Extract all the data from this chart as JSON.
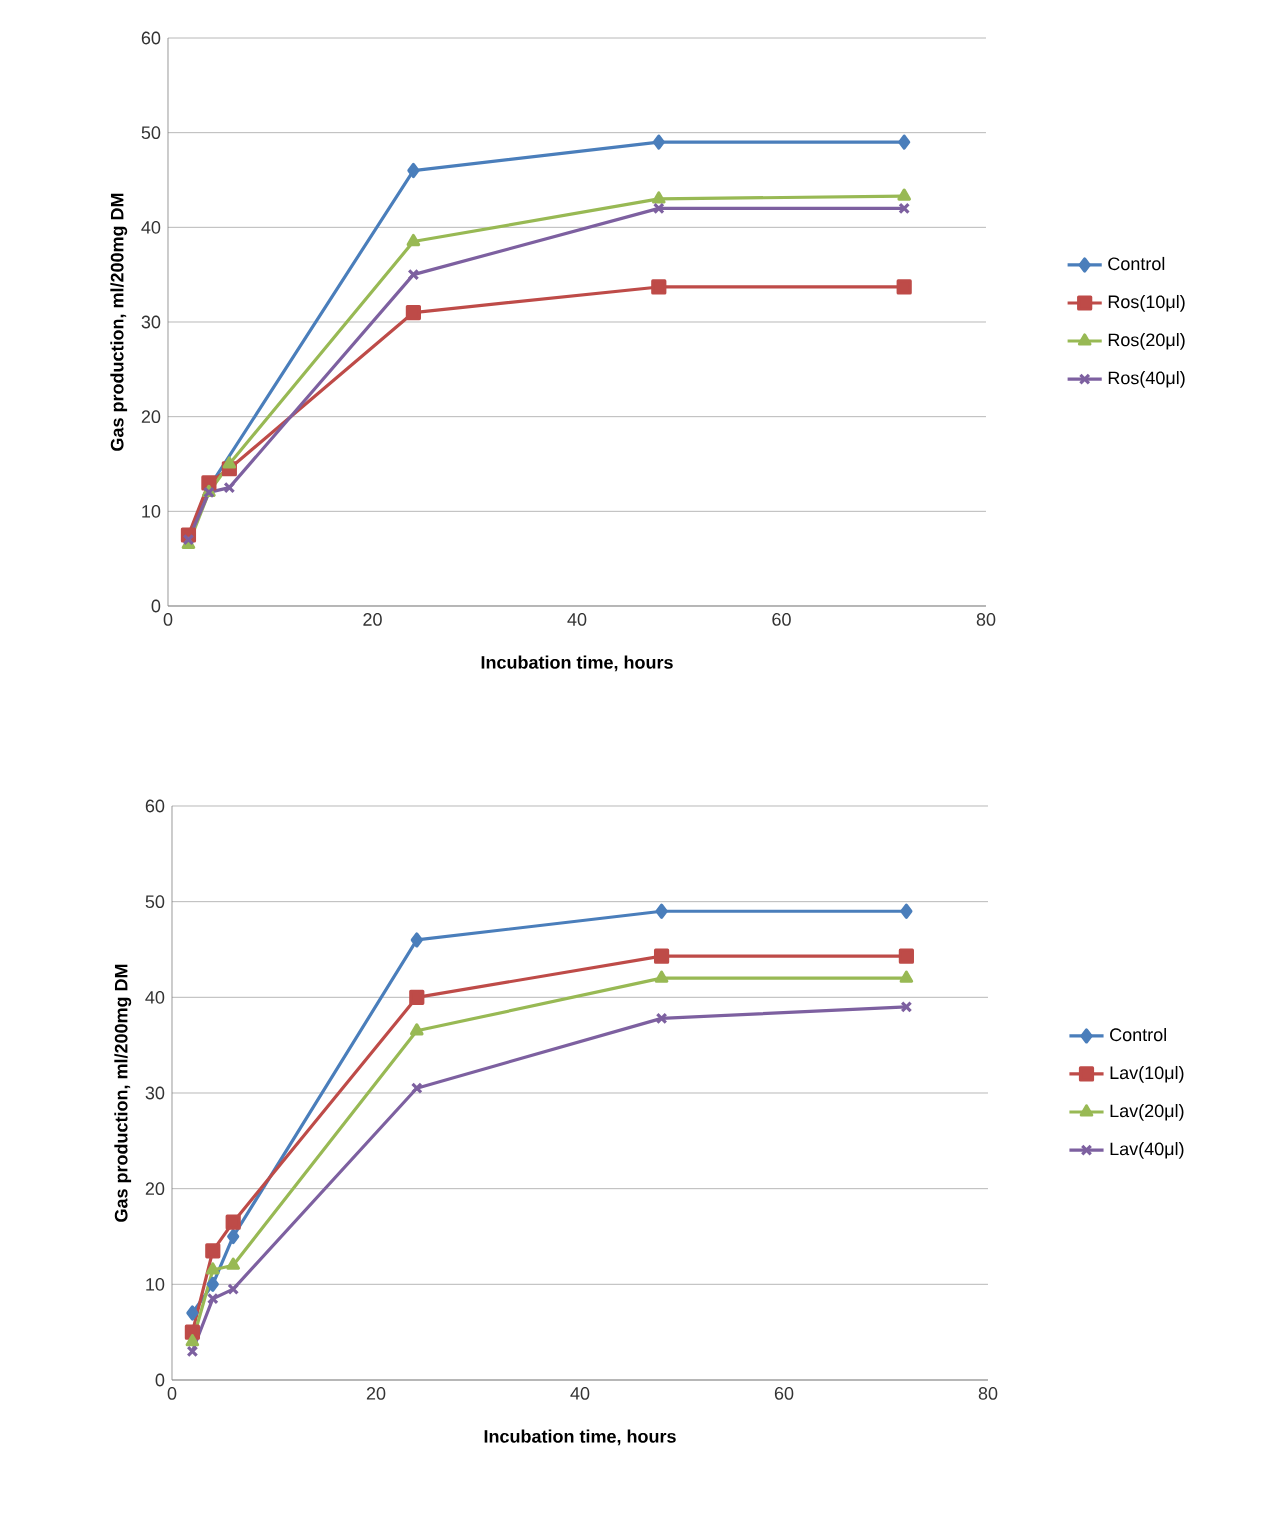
{
  "chart_data": [
    {
      "type": "line",
      "xlabel": "Incubation time, hours",
      "ylabel": "Gas production, ml/200mg DM",
      "x": [
        2,
        4,
        6,
        24,
        48,
        72
      ],
      "xlim": [
        0,
        80
      ],
      "ylim": [
        0,
        60
      ],
      "xticks": [
        0,
        20,
        40,
        60,
        80
      ],
      "yticks": [
        0,
        10,
        20,
        30,
        40,
        50,
        60
      ],
      "grid": "y",
      "legend": "right",
      "line_style": "solid",
      "series": [
        {
          "name": "Control",
          "color": "#4a7ebb",
          "marker": "diamond",
          "values": [
            7,
            12.5,
            null,
            46,
            49,
            49
          ]
        },
        {
          "name": "Ros(10μl)",
          "color": "#be4b48",
          "marker": "square",
          "values": [
            7.5,
            13,
            14.5,
            31,
            33.7,
            33.7
          ]
        },
        {
          "name": "Ros(20μl)",
          "color": "#98b954",
          "marker": "triangle",
          "values": [
            6.5,
            12,
            15,
            38.5,
            43,
            43.3
          ]
        },
        {
          "name": "Ros(40μl)",
          "color": "#7d60a0",
          "marker": "cross",
          "values": [
            7,
            12,
            12.5,
            35,
            42,
            42
          ]
        }
      ]
    },
    {
      "type": "line",
      "xlabel": "Incubation time, hours",
      "ylabel": "Gas production, ml/200mg DM",
      "x": [
        2,
        4,
        6,
        24,
        48,
        72
      ],
      "xlim": [
        0,
        80
      ],
      "ylim": [
        0,
        60
      ],
      "xticks": [
        0,
        20,
        40,
        60,
        80
      ],
      "yticks": [
        0,
        10,
        20,
        30,
        40,
        50,
        60
      ],
      "grid": "y",
      "legend": "right",
      "line_style": "solid",
      "series": [
        {
          "name": "Control",
          "color": "#4a7ebb",
          "marker": "diamond",
          "values": [
            7,
            10,
            15,
            46,
            49,
            49
          ]
        },
        {
          "name": "Lav(10μl)",
          "color": "#be4b48",
          "marker": "square",
          "values": [
            5,
            13.5,
            16.5,
            40,
            44.3,
            44.3
          ]
        },
        {
          "name": "Lav(20μl)",
          "color": "#98b954",
          "marker": "triangle",
          "values": [
            4,
            11.5,
            12,
            36.5,
            42,
            42
          ]
        },
        {
          "name": "Lav(40μl)",
          "color": "#7d60a0",
          "marker": "cross",
          "values": [
            3,
            8.5,
            9.5,
            30.5,
            37.8,
            39
          ]
        }
      ]
    }
  ]
}
